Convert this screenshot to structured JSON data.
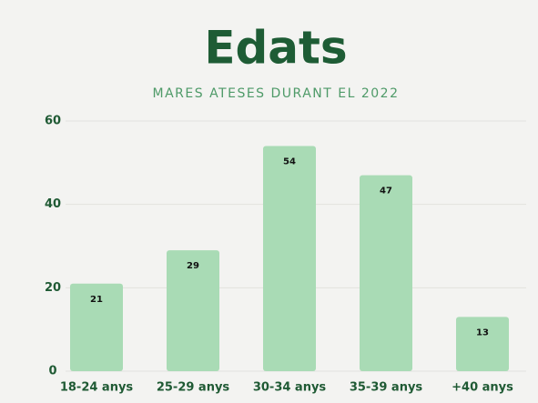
{
  "chart_data": {
    "type": "bar",
    "title": "Edats",
    "subtitle": "MARES ATESES DURANT EL 2022",
    "categories": [
      "18-24 anys",
      "25-29 anys",
      "30-34 anys",
      "35-39 anys",
      "+40 anys"
    ],
    "values": [
      21,
      29,
      54,
      47,
      13
    ],
    "color": "#a9dbb5",
    "ylim": [
      0,
      60
    ],
    "yticks": [
      0,
      20,
      40,
      60
    ],
    "grid": true
  }
}
